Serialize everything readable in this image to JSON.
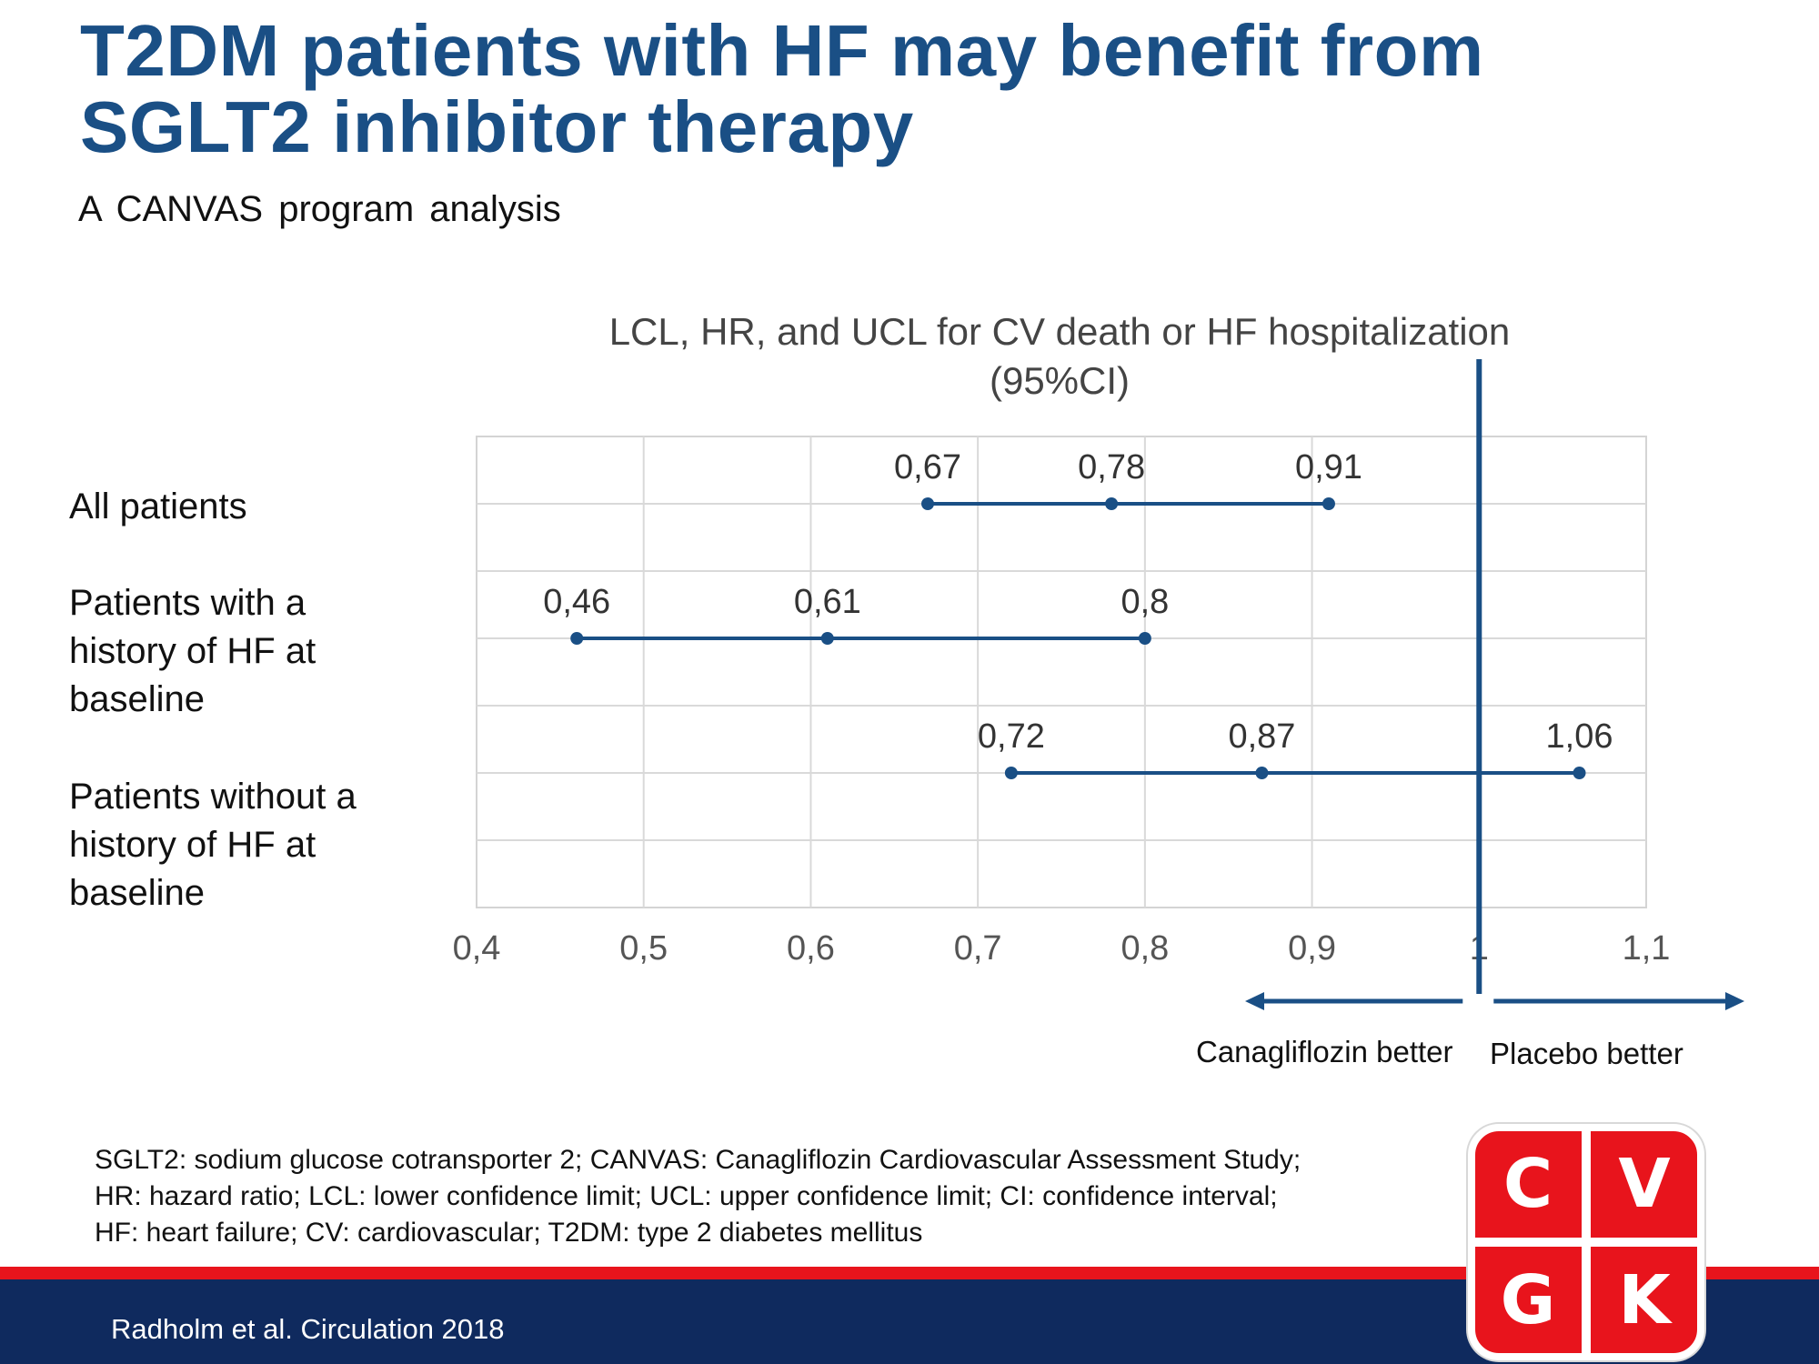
{
  "title": {
    "line1": "T2DM patients with HF may benefit from",
    "line2": "SGLT2 inhibitor therapy"
  },
  "subtitle": "A CANVAS program analysis",
  "chart_data": {
    "type": "forest",
    "title_line1": "LCL, HR, and UCL for CV death or HF hospitalization",
    "title_line2": "(95%CI)",
    "xlim": [
      0.4,
      1.1
    ],
    "xticks": [
      0.4,
      0.5,
      0.6,
      0.7,
      0.8,
      0.9,
      1.0,
      1.1
    ],
    "xtick_labels": [
      "0,4",
      "0,5",
      "0,6",
      "0,7",
      "0,8",
      "0,9",
      "1",
      "1,1"
    ],
    "reference_line": 1.0,
    "grid": true,
    "series_color": "#1a4f85",
    "rows": [
      {
        "label_lines": [
          "All patients"
        ],
        "lcl": 0.67,
        "hr": 0.78,
        "ucl": 0.91,
        "labels": [
          "0,67",
          "0,78",
          "0,91"
        ]
      },
      {
        "label_lines": [
          "Patients with a",
          "history of HF at",
          "baseline"
        ],
        "lcl": 0.46,
        "hr": 0.61,
        "ucl": 0.8,
        "labels": [
          "0,46",
          "0,61",
          "0,8"
        ]
      },
      {
        "label_lines": [
          "Patients without a",
          "history of HF at",
          "baseline"
        ],
        "lcl": 0.72,
        "hr": 0.87,
        "ucl": 1.06,
        "labels": [
          "0,72",
          "0,87",
          "1,06"
        ]
      }
    ],
    "direction_left": "Canagliflozin better",
    "direction_right": "Placebo better"
  },
  "footnote": {
    "line1": "SGLT2: sodium glucose cotransporter 2; CANVAS: Canagliflozin Cardiovascular Assessment Study;",
    "line2": "HR: hazard ratio; LCL: lower confidence limit; UCL: upper confidence limit; CI: confidence interval;",
    "line3": "HF: heart failure; CV: cardiovascular; T2DM: type 2 diabetes mellitus"
  },
  "citation": "Radholm et al. Circulation 2018",
  "logo": {
    "letters": [
      "C",
      "V",
      "G",
      "K"
    ],
    "color": "#e8141c"
  },
  "colors": {
    "title": "#1a4f85",
    "accent_red": "#e8141c",
    "footer_navy": "#0f2a5e"
  }
}
